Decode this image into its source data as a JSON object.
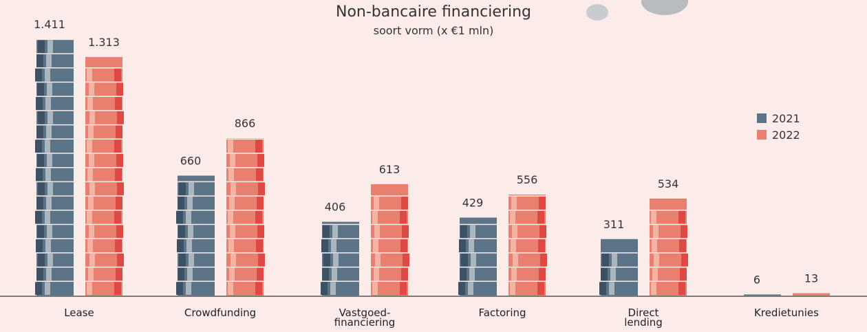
{
  "chart_data": {
    "type": "bar",
    "title": "Non-bancaire financiering",
    "subtitle": "soort vorm (x €1 mln)",
    "categories": [
      "Lease",
      "Crowdfunding",
      "Vastgoed-\nfinanciering",
      "Factoring",
      "Direct\nlending",
      "Kredietunies"
    ],
    "series": [
      {
        "name": "2021",
        "color": "#5b7487",
        "values": [
          1411,
          660,
          406,
          429,
          311,
          6
        ],
        "value_labels": [
          "1.411",
          "660",
          "406",
          "429",
          "311",
          "6"
        ]
      },
      {
        "name": "2022",
        "color": "#e97f6e",
        "values": [
          1313,
          866,
          613,
          556,
          534,
          13
        ],
        "value_labels": [
          "1.313",
          "866",
          "613",
          "556",
          "534",
          "13"
        ]
      }
    ]
  }
}
